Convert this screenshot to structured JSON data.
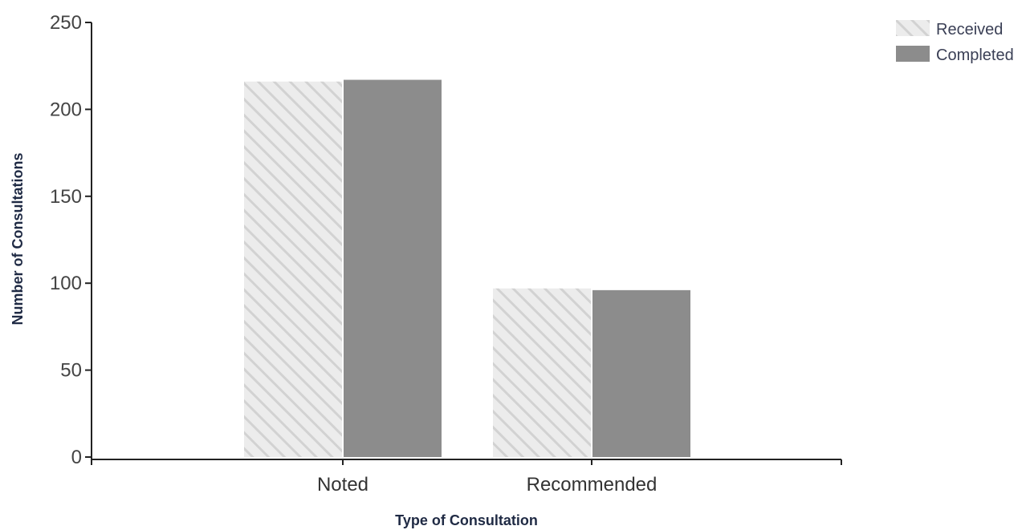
{
  "chart_data": {
    "type": "bar",
    "categories": [
      "Noted",
      "Recommended"
    ],
    "series": [
      {
        "name": "Received",
        "values": [
          216,
          97
        ],
        "color": "#e2e2e2",
        "pattern": "diagonal-hatch"
      },
      {
        "name": "Completed",
        "values": [
          217,
          96
        ],
        "color": "#8c8c8c",
        "pattern": "solid"
      }
    ],
    "xlabel": "Type of Consultation",
    "ylabel": "Number of Consultations",
    "ylim": [
      0,
      250
    ],
    "yticks": [
      0,
      50,
      100,
      150,
      200,
      250
    ],
    "grid": false,
    "legend": "top-right"
  }
}
